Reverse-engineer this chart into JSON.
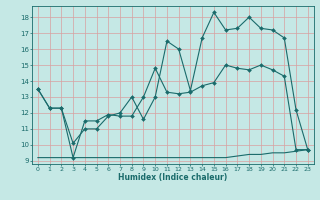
{
  "xlabel": "Humidex (Indice chaleur)",
  "xlim": [
    -0.5,
    23.5
  ],
  "ylim": [
    8.8,
    18.7
  ],
  "yticks": [
    9,
    10,
    11,
    12,
    13,
    14,
    15,
    16,
    17,
    18
  ],
  "xticks": [
    0,
    1,
    2,
    3,
    4,
    5,
    6,
    7,
    8,
    9,
    10,
    11,
    12,
    13,
    14,
    15,
    16,
    17,
    18,
    19,
    20,
    21,
    22,
    23
  ],
  "bg_color": "#c5e8e5",
  "grid_color": "#b0d8d4",
  "line_color": "#1a6b6b",
  "line1_x": [
    0,
    1,
    2,
    3,
    4,
    5,
    6,
    7,
    8,
    9,
    10,
    11,
    12,
    13,
    14,
    15,
    16,
    17,
    18,
    19,
    20,
    21,
    22,
    23
  ],
  "line1_y": [
    13.5,
    12.3,
    12.3,
    10.1,
    11.0,
    11.0,
    11.8,
    12.0,
    13.0,
    11.6,
    13.0,
    16.5,
    16.0,
    13.4,
    16.7,
    18.3,
    17.2,
    17.3,
    18.0,
    17.3,
    17.2,
    16.7,
    12.2,
    9.7
  ],
  "line2_x": [
    0,
    1,
    2,
    3,
    4,
    5,
    6,
    7,
    8,
    9,
    10,
    11,
    12,
    13,
    14,
    15,
    16,
    17,
    18,
    19,
    20,
    21,
    22,
    23
  ],
  "line2_y": [
    13.5,
    12.3,
    12.3,
    9.2,
    11.5,
    11.5,
    11.9,
    11.8,
    11.8,
    13.0,
    14.8,
    13.3,
    13.2,
    13.3,
    13.7,
    13.9,
    15.0,
    14.8,
    14.7,
    15.0,
    14.7,
    14.3,
    9.7,
    9.7
  ],
  "line3_x": [
    0,
    1,
    2,
    3,
    4,
    5,
    6,
    7,
    8,
    9,
    10,
    11,
    12,
    13,
    14,
    15,
    16,
    17,
    18,
    19,
    20,
    21,
    22,
    23
  ],
  "line3_y": [
    9.2,
    9.2,
    9.2,
    9.2,
    9.2,
    9.2,
    9.2,
    9.2,
    9.2,
    9.2,
    9.2,
    9.2,
    9.2,
    9.2,
    9.2,
    9.2,
    9.2,
    9.3,
    9.4,
    9.4,
    9.5,
    9.5,
    9.6,
    9.7
  ],
  "marker": "D",
  "marker_size": 2.0,
  "linewidth": 0.8
}
